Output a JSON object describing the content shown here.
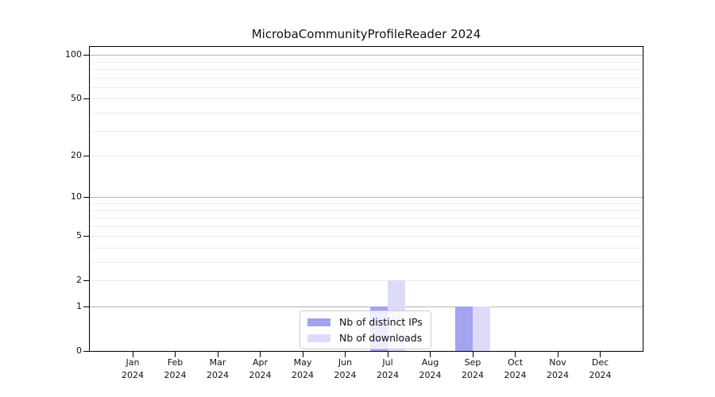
{
  "chart_data": {
    "type": "bar",
    "title": "MicrobaCommunityProfileReader 2024",
    "year_label": "2024",
    "categories": [
      "Jan",
      "Feb",
      "Mar",
      "Apr",
      "May",
      "Jun",
      "Jul",
      "Aug",
      "Sep",
      "Oct",
      "Nov",
      "Dec"
    ],
    "series": [
      {
        "name": "Nb of distinct IPs",
        "color": "#a3a3f0",
        "values": [
          0,
          0,
          0,
          0,
          0,
          0,
          1,
          0,
          1,
          0,
          0,
          0
        ]
      },
      {
        "name": "Nb of downloads",
        "color": "#dcdcf8",
        "values": [
          0,
          0,
          0,
          0,
          0,
          0,
          2,
          0,
          1,
          0,
          0,
          0
        ]
      }
    ],
    "xlabel": "",
    "ylabel": "",
    "y_axis": {
      "scale": "log1p",
      "tick_values": [
        0,
        1,
        2,
        5,
        10,
        20,
        50,
        100
      ],
      "ylim": [
        0,
        116
      ]
    },
    "grid": {
      "major_values": [
        1,
        10,
        100
      ],
      "minor_values": [
        2,
        3,
        4,
        5,
        6,
        7,
        8,
        9,
        20,
        30,
        40,
        50,
        60,
        70,
        80,
        90
      ],
      "major_color": "#b3b3b3",
      "minor_color": "#ebebeb"
    },
    "legend": {
      "position": "lower center inside",
      "entries": [
        "Nb of distinct IPs",
        "Nb of downloads"
      ]
    }
  },
  "colors": {
    "background": "#ffffff",
    "spine": "#000000",
    "bar_distinct_ips": "#a3a3f0",
    "bar_downloads": "#dcdcf8"
  }
}
